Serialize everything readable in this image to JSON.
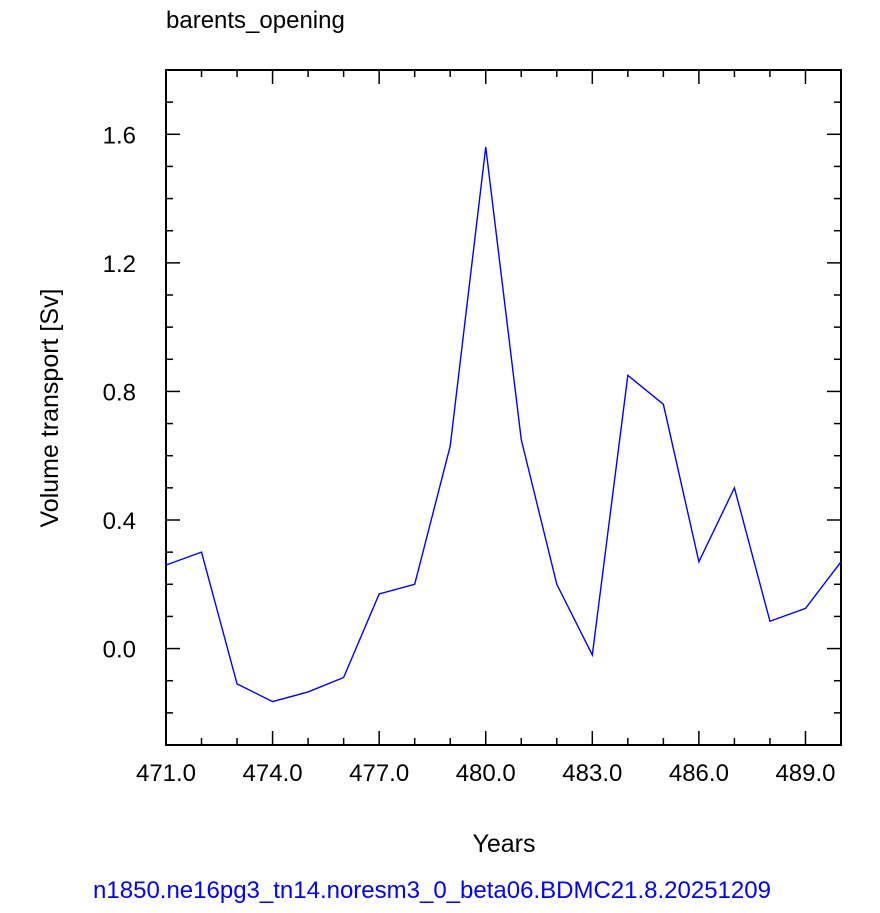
{
  "chart_data": {
    "type": "line",
    "title": "barents_opening",
    "xlabel": "Years",
    "ylabel": "Volume transport [Sv]",
    "footer": "n1850.ne16pg3_tn14.noresm3_0_beta06.BDMC21.8.20251209",
    "xlim": [
      471,
      490
    ],
    "ylim": [
      -0.3,
      1.8
    ],
    "x_ticks": [
      471,
      474,
      477,
      480,
      483,
      486,
      489
    ],
    "x_tick_labels": [
      "471.0",
      "474.0",
      "477.0",
      "480.0",
      "483.0",
      "486.0",
      "489.0"
    ],
    "y_ticks": [
      0.0,
      0.4,
      0.8,
      1.2,
      1.6
    ],
    "y_tick_labels": [
      "0.0",
      "0.4",
      "0.8",
      "1.2",
      "1.6"
    ],
    "grid": false,
    "legend": "none",
    "series": [
      {
        "color": "#0000ff",
        "x": [
          471,
          472,
          473,
          474,
          475,
          476,
          477,
          478,
          479,
          480,
          481,
          482,
          483,
          484,
          485,
          486,
          487,
          488,
          489,
          490
        ],
        "y": [
          0.26,
          0.3,
          -0.11,
          -0.165,
          -0.135,
          -0.09,
          0.17,
          0.2,
          0.63,
          1.56,
          0.65,
          0.2,
          -0.02,
          0.85,
          0.76,
          0.27,
          0.5,
          0.085,
          0.125,
          0.27
        ]
      }
    ]
  }
}
